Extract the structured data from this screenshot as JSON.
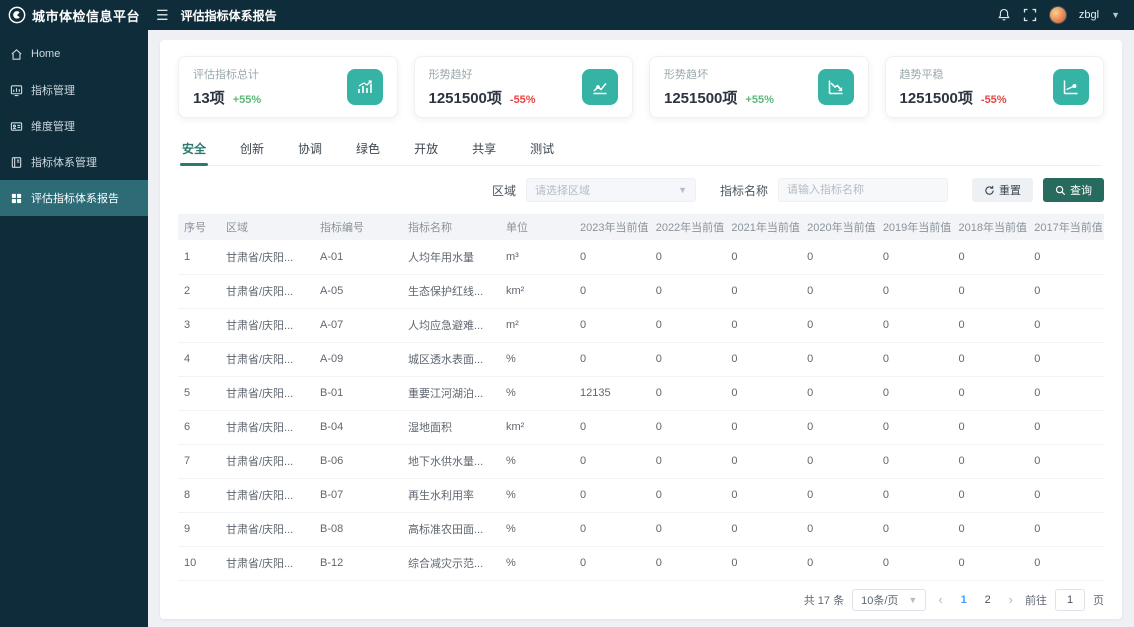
{
  "colors": {
    "accent_teal": "#35b3a5",
    "button_teal": "#276a5e",
    "sidebar_dark": "#0e2c3a",
    "active_item": "#2d6b76",
    "green": "#5cb87a",
    "red": "#e64545",
    "page_active_blue": "#409eff"
  },
  "app": {
    "title": "城市体检信息平台",
    "page_title": "评估指标体系报告",
    "user": "zbgl"
  },
  "sidebar": {
    "items": [
      {
        "id": "home",
        "label": "Home",
        "icon": "home-icon",
        "active": false
      },
      {
        "id": "indicator-mgmt",
        "label": "指标管理",
        "icon": "chart-board-icon",
        "active": false
      },
      {
        "id": "dimension-mgmt",
        "label": "维度管理",
        "icon": "id-card-icon",
        "active": false
      },
      {
        "id": "indicator-system-mgmt",
        "label": "指标体系管理",
        "icon": "notebook-icon",
        "active": false
      },
      {
        "id": "evaluation-report",
        "label": "评估指标体系报告",
        "icon": "grid-icon",
        "active": true
      }
    ]
  },
  "stat_cards": [
    {
      "label": "评估指标总计",
      "value": "13项",
      "delta": "+55%",
      "trend": "up",
      "icon": "bar-chart-icon"
    },
    {
      "label": "形势趋好",
      "value": "1251500项",
      "delta": "-55%",
      "trend": "down",
      "icon": "line-up-icon"
    },
    {
      "label": "形势趋坏",
      "value": "1251500项",
      "delta": "+55%",
      "trend": "up",
      "icon": "line-down-icon"
    },
    {
      "label": "趋势平稳",
      "value": "1251500项",
      "delta": "-55%",
      "trend": "down",
      "icon": "line-flat-icon"
    }
  ],
  "tabs": {
    "active_index": 0,
    "items": [
      "安全",
      "创新",
      "协调",
      "绿色",
      "开放",
      "共享",
      "测试"
    ]
  },
  "filters": {
    "region_label": "区域",
    "region_placeholder": "请选择区域",
    "indicator_label": "指标名称",
    "indicator_placeholder": "请输入指标名称",
    "reset_label": "重置",
    "query_label": "查询"
  },
  "table": {
    "columns": [
      "序号",
      "区域",
      "指标编号",
      "指标名称",
      "单位",
      "2023年当前值",
      "2022年当前值",
      "2021年当前值",
      "2020年当前值",
      "2019年当前值",
      "2018年当前值",
      "2017年当前值"
    ],
    "rows": [
      [
        "1",
        "甘肃省/庆阳...",
        "A-01",
        "人均年用水量",
        "m³",
        "0",
        "0",
        "0",
        "0",
        "0",
        "0",
        "0"
      ],
      [
        "2",
        "甘肃省/庆阳...",
        "A-05",
        "生态保护红线...",
        "km²",
        "0",
        "0",
        "0",
        "0",
        "0",
        "0",
        "0"
      ],
      [
        "3",
        "甘肃省/庆阳...",
        "A-07",
        "人均应急避难...",
        "m²",
        "0",
        "0",
        "0",
        "0",
        "0",
        "0",
        "0"
      ],
      [
        "4",
        "甘肃省/庆阳...",
        "A-09",
        "城区透水表面...",
        "%",
        "0",
        "0",
        "0",
        "0",
        "0",
        "0",
        "0"
      ],
      [
        "5",
        "甘肃省/庆阳...",
        "B-01",
        "重要江河湖泊...",
        "%",
        "12135",
        "0",
        "0",
        "0",
        "0",
        "0",
        "0"
      ],
      [
        "6",
        "甘肃省/庆阳...",
        "B-04",
        "湿地面积",
        "km²",
        "0",
        "0",
        "0",
        "0",
        "0",
        "0",
        "0"
      ],
      [
        "7",
        "甘肃省/庆阳...",
        "B-06",
        "地下水供水量...",
        "%",
        "0",
        "0",
        "0",
        "0",
        "0",
        "0",
        "0"
      ],
      [
        "8",
        "甘肃省/庆阳...",
        "B-07",
        "再生水利用率",
        "%",
        "0",
        "0",
        "0",
        "0",
        "0",
        "0",
        "0"
      ],
      [
        "9",
        "甘肃省/庆阳...",
        "B-08",
        "高标准农田面...",
        "%",
        "0",
        "0",
        "0",
        "0",
        "0",
        "0",
        "0"
      ],
      [
        "10",
        "甘肃省/庆阳...",
        "B-12",
        "综合减灾示范...",
        "%",
        "0",
        "0",
        "0",
        "0",
        "0",
        "0",
        "0"
      ]
    ]
  },
  "pagination": {
    "total_label": "共 17 条",
    "page_size_label": "10条/页",
    "pages": [
      "1",
      "2"
    ],
    "active_page": "1",
    "goto_label": "前往",
    "goto_value": "1",
    "page_suffix": "页"
  }
}
